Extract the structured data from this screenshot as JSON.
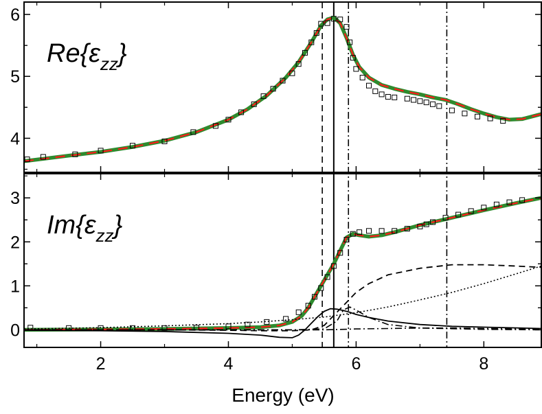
{
  "chart_data": {
    "type": "line",
    "xlabel": "Energy (eV)",
    "xlim": [
      0.8,
      8.9
    ],
    "x_ticks": [
      2,
      4,
      6,
      8
    ],
    "x_tick_labels": [
      "2",
      "4",
      "6",
      "8"
    ],
    "vertical_lines": [
      {
        "x": 5.47,
        "style": "dashed"
      },
      {
        "x": 5.65,
        "style": "solid"
      },
      {
        "x": 5.88,
        "style": "dashdot"
      },
      {
        "x": 7.42,
        "style": "dashdot"
      }
    ],
    "panels": [
      {
        "id": "re",
        "label_main": "Re{",
        "label_symbol": "ε",
        "label_sub": "zz",
        "label_close": "}",
        "ylim": [
          3.45,
          6.2
        ],
        "y_ticks": [
          4,
          5,
          6
        ],
        "y_tick_labels": [
          "4",
          "5",
          "6"
        ],
        "series": [
          {
            "style": "fit-green",
            "color": "#2e8b2e",
            "x": [
              0.8,
              1.5,
              2.0,
              2.5,
              3.0,
              3.5,
              4.0,
              4.3,
              4.6,
              4.9,
              5.1,
              5.3,
              5.45,
              5.55,
              5.65,
              5.75,
              5.85,
              5.95,
              6.05,
              6.2,
              6.4,
              6.6,
              6.8,
              7.0,
              7.2,
              7.4,
              7.6,
              7.8,
              8.0,
              8.2,
              8.4,
              8.6,
              8.9
            ],
            "y": [
              3.63,
              3.72,
              3.78,
              3.86,
              3.96,
              4.1,
              4.3,
              4.47,
              4.69,
              4.98,
              5.23,
              5.55,
              5.82,
              5.92,
              5.95,
              5.86,
              5.62,
              5.35,
              5.15,
              4.98,
              4.86,
              4.8,
              4.75,
              4.71,
              4.66,
              4.62,
              4.55,
              4.47,
              4.4,
              4.34,
              4.3,
              4.31,
              4.39
            ]
          },
          {
            "style": "fit-red",
            "color": "#ff1a1a",
            "x": [
              0.8,
              1.5,
              2.0,
              2.5,
              3.0,
              3.5,
              4.0,
              4.3,
              4.6,
              4.9,
              5.1,
              5.3,
              5.45,
              5.55,
              5.65,
              5.75,
              5.85,
              5.95,
              6.05,
              6.2,
              6.4,
              6.6,
              6.8,
              7.0,
              7.2,
              7.4,
              7.6,
              7.8,
              8.0,
              8.2,
              8.4,
              8.6,
              8.9
            ],
            "y": [
              3.63,
              3.72,
              3.78,
              3.86,
              3.96,
              4.1,
              4.3,
              4.47,
              4.69,
              4.98,
              5.23,
              5.55,
              5.82,
              5.92,
              5.95,
              5.86,
              5.62,
              5.35,
              5.15,
              4.98,
              4.86,
              4.8,
              4.75,
              4.71,
              4.66,
              4.62,
              4.55,
              4.47,
              4.4,
              4.34,
              4.3,
              4.31,
              4.39
            ]
          },
          {
            "style": "squares",
            "color": "#000000",
            "x": [
              0.85,
              1.1,
              1.6,
              2.0,
              2.5,
              3.0,
              3.45,
              3.8,
              4.0,
              4.2,
              4.4,
              4.55,
              4.7,
              4.85,
              5.0,
              5.1,
              5.2,
              5.3,
              5.38,
              5.45,
              5.55,
              5.65,
              5.75,
              5.85,
              5.9,
              5.95,
              6.0,
              6.1,
              6.2,
              6.3,
              6.4,
              6.5,
              6.6,
              6.8,
              6.9,
              7.0,
              7.1,
              7.2,
              7.3,
              7.5,
              7.7,
              7.9,
              8.1,
              8.3
            ],
            "y": [
              3.66,
              3.7,
              3.74,
              3.8,
              3.88,
              3.95,
              4.1,
              4.2,
              4.3,
              4.42,
              4.55,
              4.68,
              4.8,
              4.93,
              5.05,
              5.2,
              5.38,
              5.55,
              5.7,
              5.85,
              5.86,
              5.93,
              5.92,
              5.8,
              5.55,
              5.3,
              5.12,
              4.98,
              4.85,
              4.76,
              4.71,
              4.67,
              4.66,
              4.64,
              4.62,
              4.6,
              4.58,
              4.55,
              4.52,
              4.45,
              4.4,
              4.35,
              4.32,
              4.28
            ]
          }
        ]
      },
      {
        "id": "im",
        "label_main": "Im{",
        "label_symbol": "ε",
        "label_sub": "zz",
        "label_close": "}",
        "ylim": [
          -0.4,
          3.55
        ],
        "y_ticks": [
          0,
          1,
          2,
          3
        ],
        "y_tick_labels": [
          "0",
          "1",
          "2",
          "3"
        ],
        "series": [
          {
            "style": "fit-green",
            "color": "#2e8b2e",
            "x": [
              0.8,
              2.0,
              3.0,
              4.0,
              4.5,
              4.8,
              5.0,
              5.15,
              5.25,
              5.35,
              5.45,
              5.55,
              5.65,
              5.75,
              5.85,
              5.95,
              6.05,
              6.2,
              6.4,
              6.6,
              6.8,
              7.0,
              7.5,
              8.0,
              8.5,
              8.9
            ],
            "y": [
              0.0,
              0.01,
              0.02,
              0.04,
              0.06,
              0.1,
              0.18,
              0.32,
              0.5,
              0.75,
              1.0,
              1.25,
              1.5,
              1.8,
              2.1,
              2.18,
              2.15,
              2.12,
              2.15,
              2.22,
              2.3,
              2.38,
              2.55,
              2.72,
              2.88,
              3.0
            ]
          },
          {
            "style": "fit-red",
            "color": "#ff1a1a",
            "x": [
              0.8,
              2.0,
              3.0,
              4.0,
              4.5,
              4.8,
              5.0,
              5.15,
              5.25,
              5.35,
              5.45,
              5.55,
              5.65,
              5.75,
              5.85,
              5.95,
              6.05,
              6.2,
              6.4,
              6.6,
              6.8,
              7.0,
              7.5,
              8.0,
              8.5,
              8.9
            ],
            "y": [
              0.0,
              0.01,
              0.02,
              0.04,
              0.06,
              0.1,
              0.18,
              0.32,
              0.5,
              0.75,
              1.0,
              1.25,
              1.5,
              1.8,
              2.1,
              2.18,
              2.15,
              2.12,
              2.15,
              2.22,
              2.3,
              2.38,
              2.55,
              2.72,
              2.88,
              3.0
            ]
          },
          {
            "style": "squares",
            "color": "#000000",
            "x": [
              0.9,
              1.5,
              2.0,
              2.5,
              3.0,
              3.5,
              4.0,
              4.3,
              4.6,
              4.9,
              5.1,
              5.25,
              5.35,
              5.45,
              5.55,
              5.65,
              5.75,
              5.85,
              5.95,
              6.05,
              6.2,
              6.4,
              6.6,
              6.8,
              7.0,
              7.1,
              7.2,
              7.4,
              7.6,
              7.8,
              8.0,
              8.2,
              8.4,
              8.6
            ],
            "y": [
              0.05,
              0.04,
              0.04,
              0.04,
              0.04,
              0.05,
              0.08,
              0.12,
              0.18,
              0.25,
              0.4,
              0.55,
              0.75,
              0.95,
              1.2,
              1.45,
              1.75,
              2.05,
              2.18,
              2.22,
              2.25,
              2.25,
              2.25,
              2.3,
              2.35,
              2.4,
              2.45,
              2.55,
              2.62,
              2.7,
              2.78,
              2.85,
              2.9,
              2.95
            ]
          },
          {
            "style": "dashed-black",
            "color": "#000000",
            "x": [
              0.8,
              2.0,
              3.0,
              4.0,
              4.5,
              5.0,
              5.3,
              5.5,
              5.6,
              5.7,
              5.8,
              5.9,
              6.0,
              6.2,
              6.5,
              7.0,
              7.5,
              8.0,
              8.5,
              8.9
            ],
            "y": [
              0.0,
              0.0,
              0.0,
              -0.01,
              -0.02,
              -0.02,
              0.0,
              0.1,
              0.25,
              0.4,
              0.55,
              0.7,
              0.85,
              1.05,
              1.25,
              1.4,
              1.48,
              1.48,
              1.45,
              1.42
            ]
          },
          {
            "style": "dotted-black",
            "color": "#000000",
            "x": [
              0.8,
              2.0,
              3.0,
              4.0,
              4.5,
              5.0,
              5.5,
              6.0,
              6.5,
              7.0,
              7.5,
              8.0,
              8.5,
              8.9
            ],
            "y": [
              0.02,
              0.05,
              0.09,
              0.14,
              0.18,
              0.23,
              0.29,
              0.39,
              0.52,
              0.68,
              0.85,
              1.05,
              1.27,
              1.45
            ]
          },
          {
            "style": "solid-black",
            "color": "#000000",
            "x": [
              0.8,
              2.0,
              3.0,
              4.0,
              4.5,
              4.8,
              5.0,
              5.1,
              5.2,
              5.3,
              5.4,
              5.5,
              5.6,
              5.7,
              5.8,
              5.9,
              6.0,
              6.2,
              6.5,
              7.0,
              7.5,
              8.0,
              8.9
            ],
            "y": [
              -0.01,
              -0.02,
              -0.04,
              -0.08,
              -0.12,
              -0.17,
              -0.18,
              -0.12,
              0.0,
              0.15,
              0.3,
              0.42,
              0.48,
              0.47,
              0.44,
              0.4,
              0.35,
              0.28,
              0.2,
              0.12,
              0.08,
              0.06,
              0.03
            ]
          },
          {
            "style": "dashdot-black",
            "color": "#000000",
            "x": [
              0.8,
              3.0,
              5.0,
              5.5,
              5.7,
              5.8,
              5.9,
              6.0,
              6.2,
              6.5,
              7.0,
              8.0,
              8.9
            ],
            "y": [
              0.0,
              0.0,
              0.0,
              0.02,
              0.2,
              0.45,
              0.52,
              0.45,
              0.28,
              0.12,
              0.04,
              0.01,
              0.0
            ]
          },
          {
            "style": "dashdot-black",
            "color": "#000000",
            "x": [
              0.8,
              3.0,
              5.0,
              5.5,
              5.8,
              6.0,
              6.5,
              7.0,
              7.5,
              8.0,
              8.9
            ],
            "y": [
              0.0,
              0.0,
              0.0,
              0.0,
              0.01,
              0.02,
              0.03,
              0.04,
              0.04,
              0.03,
              0.02
            ]
          }
        ]
      }
    ]
  }
}
